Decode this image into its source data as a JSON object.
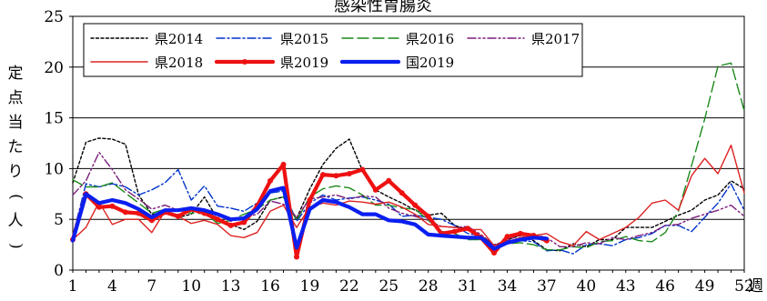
{
  "chart_data": {
    "type": "line",
    "title": "感染性胃腸炎",
    "ylabel": "定点当たり(人)",
    "xlabel": "週",
    "ylim": [
      0,
      25
    ],
    "yticks": [
      "0",
      "5",
      "10",
      "15",
      "20",
      "25"
    ],
    "xticks": [
      "1",
      "4",
      "7",
      "10",
      "13",
      "16",
      "19",
      "22",
      "25",
      "28",
      "31",
      "34",
      "37",
      "40",
      "43",
      "46",
      "49",
      "52"
    ],
    "grid": "horizontal",
    "legend_position": "top-left",
    "series": [
      {
        "name": "県2014",
        "color": "#000000",
        "style": "dotted",
        "x": [
          1,
          2,
          3,
          4,
          5,
          6,
          7,
          8,
          9,
          10,
          11,
          12,
          13,
          14,
          15,
          16,
          17,
          18,
          19,
          20,
          21,
          22,
          23,
          24,
          25,
          26,
          27,
          28,
          29,
          30,
          31,
          32,
          33,
          34,
          35,
          36,
          37,
          38,
          39,
          40,
          41,
          42,
          43,
          44,
          45,
          46,
          47,
          48,
          49,
          50,
          51,
          52
        ],
        "values": [
          8.6,
          12.6,
          13.0,
          12.9,
          12.4,
          7.4,
          5.5,
          5.6,
          5.2,
          5.5,
          7.2,
          5.0,
          4.5,
          4.0,
          4.8,
          6.9,
          7.2,
          5.1,
          8.0,
          10.4,
          12.0,
          12.9,
          9.8,
          7.9,
          7.2,
          6.6,
          5.9,
          5.4,
          5.6,
          4.4,
          4.0,
          3.4,
          2.4,
          3.0,
          3.4,
          2.9,
          2.0,
          1.9,
          2.6,
          2.3,
          3.0,
          3.0,
          4.2,
          4.2,
          4.2,
          4.8,
          5.4,
          5.9,
          6.9,
          7.4,
          8.8,
          8.0
        ]
      },
      {
        "name": "県2015",
        "color": "#0033cc",
        "style": "dashdot",
        "x": [
          1,
          2,
          3,
          4,
          5,
          6,
          7,
          8,
          9,
          10,
          11,
          12,
          13,
          14,
          15,
          16,
          17,
          18,
          19,
          20,
          21,
          22,
          23,
          24,
          25,
          26,
          27,
          28,
          29,
          30,
          31,
          32,
          33,
          34,
          35,
          36,
          37,
          38,
          39,
          40,
          41,
          42,
          43,
          44,
          45,
          46,
          47,
          48,
          49,
          50,
          51,
          52
        ],
        "values": [
          3.4,
          8.5,
          8.2,
          8.5,
          8.2,
          7.4,
          7.9,
          8.6,
          9.9,
          6.9,
          8.3,
          6.3,
          6.1,
          5.8,
          6.6,
          7.6,
          7.8,
          4.8,
          6.6,
          7.4,
          6.9,
          7.1,
          7.2,
          6.9,
          6.5,
          5.3,
          5.4,
          5.2,
          5.0,
          4.4,
          3.6,
          3.4,
          2.4,
          2.9,
          2.9,
          2.8,
          1.9,
          2.0,
          1.6,
          2.5,
          2.6,
          2.4,
          3.0,
          3.2,
          3.6,
          4.4,
          4.4,
          3.8,
          5.2,
          6.6,
          8.5,
          5.9
        ]
      },
      {
        "name": "県2016",
        "color": "#1a8a1a",
        "style": "dashed",
        "x": [
          1,
          2,
          3,
          4,
          5,
          6,
          7,
          8,
          9,
          10,
          11,
          12,
          13,
          14,
          15,
          16,
          17,
          18,
          19,
          20,
          21,
          22,
          23,
          24,
          25,
          26,
          27,
          28,
          29,
          30,
          31,
          32,
          33,
          34,
          35,
          36,
          37,
          38,
          39,
          40,
          41,
          42,
          43,
          44,
          45,
          46,
          47,
          48,
          49,
          50,
          51,
          52
        ],
        "values": [
          8.9,
          8.2,
          8.2,
          8.6,
          7.6,
          6.6,
          5.6,
          6.0,
          5.8,
          5.6,
          5.6,
          4.6,
          4.9,
          5.5,
          6.0,
          6.9,
          7.2,
          4.9,
          7.2,
          8.0,
          8.3,
          8.1,
          7.4,
          6.4,
          6.4,
          6.1,
          6.0,
          4.9,
          3.8,
          3.6,
          3.0,
          3.0,
          2.2,
          2.6,
          2.7,
          2.5,
          2.0,
          2.0,
          2.3,
          2.2,
          2.8,
          2.9,
          3.3,
          2.9,
          2.8,
          3.7,
          5.8,
          10.3,
          14.9,
          20.1,
          20.4,
          15.7
        ]
      },
      {
        "name": "県2017",
        "color": "#7a1d7a",
        "style": "dashdotdot",
        "x": [
          1,
          2,
          3,
          4,
          5,
          6,
          7,
          8,
          9,
          10,
          11,
          12,
          13,
          14,
          15,
          16,
          17,
          18,
          19,
          20,
          21,
          22,
          23,
          24,
          25,
          26,
          27,
          28,
          29,
          30,
          31,
          32,
          33,
          34,
          35,
          36,
          37,
          38,
          39,
          40,
          41,
          42,
          43,
          44,
          45,
          46,
          47,
          48,
          49,
          50,
          51,
          52
        ],
        "values": [
          7.4,
          8.8,
          11.6,
          9.9,
          7.9,
          7.0,
          6.0,
          6.4,
          5.9,
          6.0,
          5.5,
          5.4,
          4.8,
          5.2,
          5.5,
          6.8,
          6.5,
          5.2,
          7.0,
          7.2,
          7.4,
          7.0,
          7.3,
          7.2,
          6.1,
          5.6,
          5.3,
          4.9,
          4.3,
          4.2,
          4.3,
          3.5,
          2.5,
          2.9,
          3.5,
          3.5,
          3.2,
          2.3,
          2.3,
          2.7,
          2.6,
          3.2,
          3.0,
          3.4,
          3.7,
          4.4,
          4.5,
          5.1,
          5.5,
          5.9,
          6.4,
          5.3
        ]
      },
      {
        "name": "県2018",
        "color": "#dd2222",
        "style": "solid-thin",
        "x": [
          1,
          2,
          3,
          4,
          5,
          6,
          7,
          8,
          9,
          10,
          11,
          12,
          13,
          14,
          15,
          16,
          17,
          18,
          19,
          20,
          21,
          22,
          23,
          24,
          25,
          26,
          27,
          28,
          29,
          30,
          31,
          32,
          33,
          34,
          35,
          36,
          37,
          38,
          39,
          40,
          41,
          42,
          43,
          44,
          45,
          46,
          47,
          48,
          49,
          50,
          51,
          52
        ],
        "values": [
          3.0,
          4.2,
          6.7,
          4.5,
          5.0,
          5.0,
          3.7,
          5.8,
          5.3,
          4.6,
          4.9,
          4.5,
          3.4,
          3.2,
          3.7,
          5.8,
          6.4,
          4.2,
          6.2,
          6.6,
          6.4,
          6.8,
          6.7,
          6.5,
          6.7,
          6.2,
          5.5,
          4.5,
          4.3,
          4.2,
          4.0,
          4.0,
          2.4,
          2.8,
          3.2,
          3.4,
          3.6,
          2.8,
          2.4,
          3.8,
          3.0,
          3.6,
          4.2,
          5.2,
          6.6,
          6.9,
          5.9,
          9.3,
          11.0,
          9.5,
          12.3,
          7.6
        ]
      },
      {
        "name": "県2019",
        "color": "#ee1111",
        "style": "solid-thick-markers",
        "x": [
          1,
          2,
          3,
          4,
          5,
          6,
          7,
          8,
          9,
          10,
          11,
          12,
          13,
          14,
          15,
          16,
          17,
          18,
          19,
          20,
          21,
          22,
          23,
          24,
          25,
          26,
          27,
          28,
          29,
          30,
          31,
          32,
          33,
          34,
          35,
          36,
          37
        ],
        "values": [
          3.0,
          7.5,
          6.2,
          6.3,
          5.7,
          5.6,
          4.9,
          5.7,
          5.3,
          6.0,
          5.6,
          5.0,
          4.4,
          4.7,
          6.3,
          8.8,
          10.4,
          1.3,
          6.9,
          9.4,
          9.3,
          9.5,
          9.9,
          7.9,
          8.8,
          7.6,
          6.4,
          5.3,
          3.6,
          3.8,
          4.1,
          3.2,
          1.7,
          3.3,
          3.6,
          3.4,
          2.9
        ]
      },
      {
        "name": "国2019",
        "color": "#0a1ef0",
        "style": "solid-thick",
        "x": [
          1,
          2,
          3,
          4,
          5,
          6,
          7,
          8,
          9,
          10,
          11,
          12,
          13,
          14,
          15,
          16,
          17,
          18,
          19,
          20,
          21,
          22,
          23,
          24,
          25,
          26,
          27,
          28,
          29,
          30,
          31,
          32,
          33,
          34,
          35,
          36,
          37
        ],
        "values": [
          2.9,
          7.5,
          6.6,
          6.9,
          6.6,
          6.0,
          5.2,
          5.9,
          5.9,
          6.1,
          5.9,
          5.5,
          5.0,
          5.1,
          6.0,
          7.8,
          8.1,
          2.2,
          6.0,
          6.9,
          6.7,
          6.2,
          5.5,
          5.5,
          4.9,
          4.8,
          4.5,
          3.5,
          3.4,
          3.3,
          3.2,
          3.2,
          2.1,
          2.7,
          3.0,
          3.2,
          3.1
        ]
      }
    ]
  }
}
